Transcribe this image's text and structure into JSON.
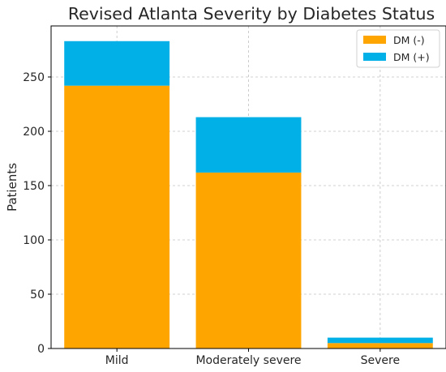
{
  "chart_data": {
    "type": "bar",
    "stacked": true,
    "title": "Revised Atlanta Severity by Diabetes Status",
    "xlabel": "",
    "ylabel": "Patients",
    "categories": [
      "Mild",
      "Moderately severe",
      "Severe"
    ],
    "series": [
      {
        "name": "DM (-)",
        "color": "#ffa500",
        "values": [
          242,
          162,
          5
        ]
      },
      {
        "name": "DM (+)",
        "color": "#00b0e6",
        "values": [
          41,
          51,
          5
        ]
      }
    ],
    "ylim": [
      0,
      297
    ],
    "yticks": [
      0,
      50,
      100,
      150,
      200,
      250
    ],
    "grid": true,
    "legend_position": "top-right"
  }
}
